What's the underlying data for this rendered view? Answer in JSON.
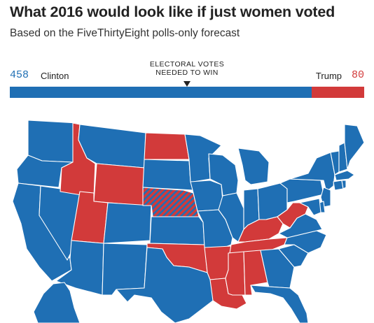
{
  "header": {
    "title": "What 2016 would look like if just women voted",
    "subtitle": "Based on the FiveThirtyEight polls-only forecast"
  },
  "electoral_bar": {
    "threshold_label_line1": "ELECTORAL VOTES",
    "threshold_label_line2": "NEEDED TO WIN",
    "clinton": {
      "name": "Clinton",
      "votes": "458",
      "color": "#1f6fb4"
    },
    "trump": {
      "name": "Trump",
      "votes": "80",
      "color": "#d23a3a"
    },
    "total_votes": 538,
    "votes_needed": 270
  },
  "map": {
    "colors": {
      "clinton": "#1f6fb4",
      "trump": "#d23a3a",
      "split": "striped"
    },
    "states": {
      "WA": "clinton",
      "OR": "clinton",
      "CA": "clinton",
      "NV": "clinton",
      "ID": "trump",
      "MT": "clinton",
      "WY": "trump",
      "UT": "trump",
      "AZ": "clinton",
      "CO": "clinton",
      "NM": "clinton",
      "ND": "trump",
      "SD": "clinton",
      "NE": "split",
      "KS": "clinton",
      "OK": "trump",
      "TX": "clinton",
      "MN": "clinton",
      "IA": "clinton",
      "MO": "clinton",
      "AR": "trump",
      "LA": "trump",
      "WI": "clinton",
      "IL": "clinton",
      "MI": "clinton",
      "IN": "clinton",
      "OH": "clinton",
      "KY": "trump",
      "TN": "trump",
      "MS": "trump",
      "AL": "trump",
      "GA": "clinton",
      "FL": "clinton",
      "SC": "clinton",
      "NC": "clinton",
      "VA": "clinton",
      "WV": "trump",
      "PA": "clinton",
      "NY": "clinton",
      "VT": "clinton",
      "NH": "clinton",
      "ME": "clinton",
      "MA": "clinton",
      "CT": "clinton",
      "RI": "clinton",
      "NJ": "clinton",
      "DE": "clinton",
      "MD": "clinton",
      "AK": "clinton"
    }
  }
}
